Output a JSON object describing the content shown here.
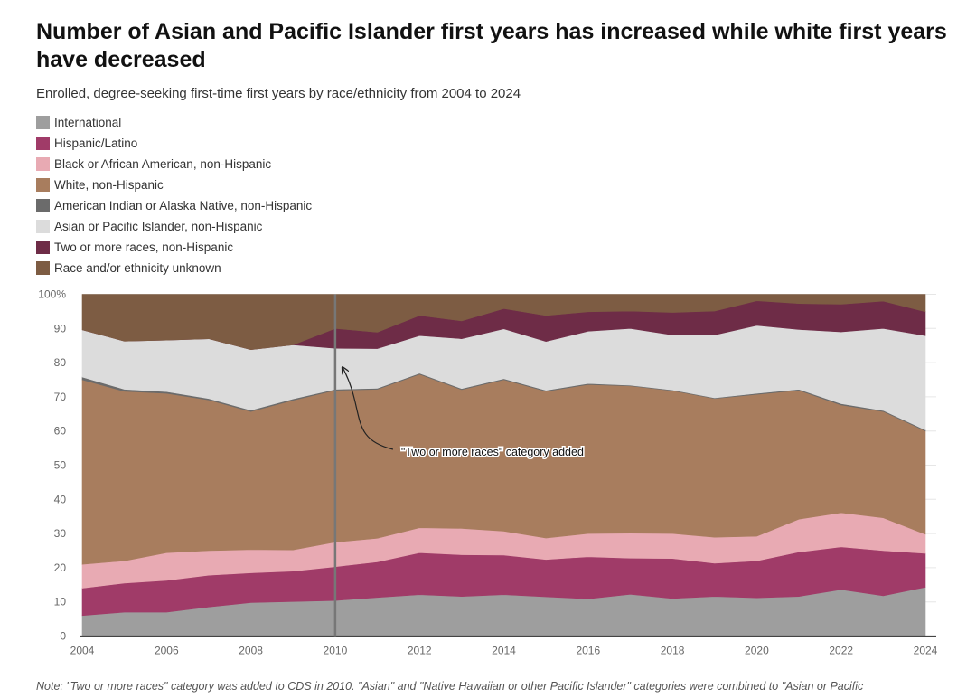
{
  "chart_data": {
    "type": "area",
    "stacked": true,
    "title": "Number of Asian and Pacific Islander first years has increased while white first years have decreased",
    "subtitle": "Enrolled, degree-seeking first-time first years by race/ethnicity from 2004 to 2024",
    "x": [
      2004,
      2005,
      2006,
      2007,
      2008,
      2009,
      2010,
      2011,
      2012,
      2013,
      2014,
      2015,
      2016,
      2017,
      2018,
      2019,
      2020,
      2021,
      2022,
      2023,
      2024
    ],
    "x_ticks": [
      "2004",
      "2006",
      "2008",
      "2010",
      "2012",
      "2014",
      "2016",
      "2018",
      "2020",
      "2022",
      "2024"
    ],
    "y_ticks": [
      "0",
      "10",
      "20",
      "30",
      "40",
      "50",
      "60",
      "70",
      "80",
      "90",
      "100%"
    ],
    "ylim": [
      0,
      100
    ],
    "grid": true,
    "legend_position": "top-left",
    "series": [
      {
        "name": "International",
        "color": "#9e9e9e",
        "values": [
          6,
          7,
          7,
          8.5,
          9.8,
          10.1,
          10.4,
          11.3,
          12.1,
          11.6,
          12.1,
          11.5,
          10.9,
          12.2,
          11.0,
          11.6,
          11.2,
          11.6,
          13.6,
          11.8,
          14.3
        ]
      },
      {
        "name": "Hispanic/Latino",
        "color": "#a03b68",
        "values": [
          8,
          8.5,
          9.3,
          9.3,
          8.7,
          8.9,
          9.9,
          10.4,
          12.3,
          12.2,
          11.6,
          10.9,
          12.3,
          10.6,
          11.7,
          9.7,
          10.8,
          13.0,
          12.5,
          13.2,
          9.9
        ]
      },
      {
        "name": "Black or African American, non-Hispanic",
        "color": "#e8aab3",
        "values": [
          7,
          6.5,
          8.1,
          7.2,
          6.8,
          6.2,
          7.2,
          6.9,
          7.3,
          7.7,
          7.0,
          6.3,
          6.8,
          7.3,
          7.3,
          7.6,
          7.2,
          9.6,
          10.0,
          9.6,
          5.6
        ]
      },
      {
        "name": "White, non-Hispanic",
        "color": "#a87d5e",
        "values": [
          54,
          49.6,
          46.6,
          44.1,
          40.4,
          43.8,
          44.4,
          43.6,
          44.9,
          40.6,
          44.3,
          42.9,
          43.6,
          43.1,
          41.8,
          40.6,
          41.5,
          37.7,
          31.5,
          31.1,
          30.2
        ]
      },
      {
        "name": "American Indian or Alaska Native, non-Hispanic",
        "color": "#6b6b6b",
        "values": [
          0.8,
          0.6,
          0.5,
          0.4,
          0.4,
          0.4,
          0.3,
          0.3,
          0.3,
          0.3,
          0.3,
          0.3,
          0.3,
          0.2,
          0.2,
          0.2,
          0.3,
          0.3,
          0.4,
          0.3,
          0.3
        ]
      },
      {
        "name": "Asian or Pacific Islander, non-Hispanic",
        "color": "#dcdcdc",
        "values": [
          13.8,
          14.1,
          15.1,
          17.5,
          17.7,
          15.8,
          12.0,
          11.6,
          11.0,
          14.6,
          14.6,
          14.3,
          15.3,
          16.6,
          16.1,
          18.4,
          19.9,
          17.5,
          21.0,
          24.0,
          27.6
        ]
      },
      {
        "name": "Two or more races, non-Hispanic",
        "color": "#6e2c47",
        "values": [
          0,
          0,
          0,
          0,
          0,
          0,
          5.8,
          4.8,
          5.9,
          5.2,
          5.9,
          7.6,
          5.7,
          5.1,
          6.6,
          7.0,
          7.2,
          7.6,
          8.1,
          8.0,
          7.0
        ]
      },
      {
        "name": "Race and/or ethnicity unknown",
        "color": "#7d5c43",
        "values": [
          10.4,
          13.7,
          13.4,
          13.0,
          16.2,
          14.8,
          10.0,
          11.1,
          6.2,
          7.8,
          4.2,
          6.2,
          5.1,
          4.9,
          5.3,
          4.9,
          1.9,
          2.7,
          2.9,
          2.0,
          5.1
        ]
      }
    ],
    "annotation": {
      "text": "\"Two or more races\" category added",
      "x": 2010,
      "y": 80
    }
  },
  "note": "Note: \"Two or more races\" category was added to CDS in 2010. \"Asian\" and \"Native Hawaiian or other Pacific Islander\" categories were combined to \"Asian or Pacific"
}
